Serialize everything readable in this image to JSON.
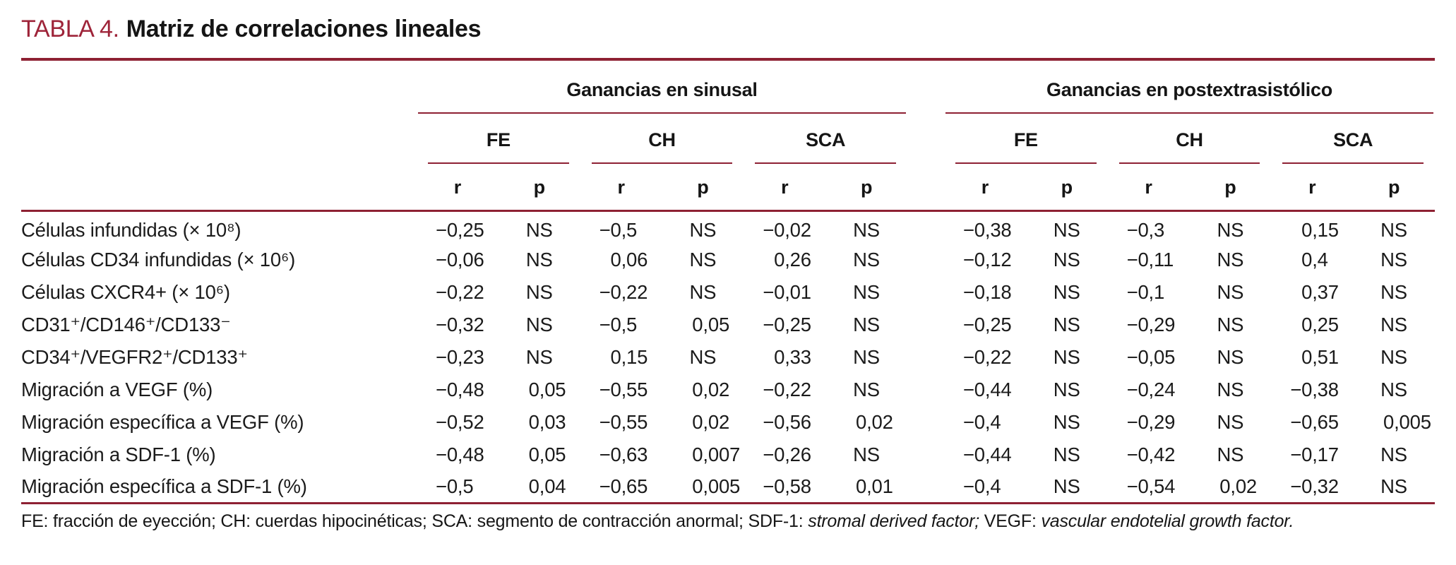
{
  "colors": {
    "accent_rule": "#8e2133",
    "title_label": "#9e2439",
    "text": "#1b1b1b"
  },
  "title": {
    "label": "TABLA 4.",
    "text": "Matriz de correlaciones lineales"
  },
  "table": {
    "group_headers": [
      "Ganancias en sinusal",
      "Ganancias en postextrasistólico"
    ],
    "sub_headers": [
      "FE",
      "CH",
      "SCA"
    ],
    "stat_headers": [
      "r",
      "p"
    ],
    "rows": [
      {
        "label": "Células infundidas (× 10⁸)",
        "values": [
          "−0,25",
          "NS",
          "−0,5",
          "NS",
          "−0,02",
          "NS",
          "−0,38",
          "NS",
          "−0,3",
          "NS",
          "0,15",
          "NS"
        ]
      },
      {
        "label": "Células CD34 infundidas (× 10⁶)",
        "values": [
          "−0,06",
          "NS",
          "0,06",
          "NS",
          "0,26",
          "NS",
          "−0,12",
          "NS",
          "−0,11",
          "NS",
          "0,4",
          "NS"
        ]
      },
      {
        "label": "Células CXCR4+ (× 10⁶)",
        "values": [
          "−0,22",
          "NS",
          "−0,22",
          "NS",
          "−0,01",
          "NS",
          "−0,18",
          "NS",
          "−0,1",
          "NS",
          "0,37",
          "NS"
        ]
      },
      {
        "label": "CD31⁺/CD146⁺/CD133⁻",
        "values": [
          "−0,32",
          "NS",
          "−0,5",
          "0,05",
          "−0,25",
          "NS",
          "−0,25",
          "NS",
          "−0,29",
          "NS",
          "0,25",
          "NS"
        ]
      },
      {
        "label": "CD34⁺/VEGFR2⁺/CD133⁺",
        "values": [
          "−0,23",
          "NS",
          "0,15",
          "NS",
          "0,33",
          "NS",
          "−0,22",
          "NS",
          "−0,05",
          "NS",
          "0,51",
          "NS"
        ]
      },
      {
        "label": "Migración a VEGF (%)",
        "values": [
          "−0,48",
          "0,05",
          "−0,55",
          "0,02",
          "−0,22",
          "NS",
          "−0,44",
          "NS",
          "−0,24",
          "NS",
          "−0,38",
          "NS"
        ]
      },
      {
        "label": "Migración específica a VEGF (%)",
        "values": [
          "−0,52",
          "0,03",
          "−0,55",
          "0,02",
          "−0,56",
          "0,02",
          "−0,4",
          "NS",
          "−0,29",
          "NS",
          "−0,65",
          "0,005"
        ]
      },
      {
        "label": "Migración a SDF-1 (%)",
        "values": [
          "−0,48",
          "0,05",
          "−0,63",
          "0,007",
          "−0,26",
          "NS",
          "−0,44",
          "NS",
          "−0,42",
          "NS",
          "−0,17",
          "NS"
        ]
      },
      {
        "label": "Migración específica a SDF-1 (%)",
        "values": [
          "−0,5",
          "0,04",
          "−0,65",
          "0,005",
          "−0,58",
          "0,01",
          "−0,4",
          "NS",
          "−0,54",
          "0,02",
          "−0,32",
          "NS"
        ]
      }
    ]
  },
  "footnote": {
    "parts": [
      {
        "text": "FE: fracción de eyección; CH: cuerdas hipocinéticas; SCA: segmento de contracción anormal; SDF-1: ",
        "italic": false
      },
      {
        "text": "stromal derived factor;",
        "italic": true
      },
      {
        "text": " VEGF: ",
        "italic": false
      },
      {
        "text": "vascular endotelial growth factor.",
        "italic": true
      }
    ]
  }
}
